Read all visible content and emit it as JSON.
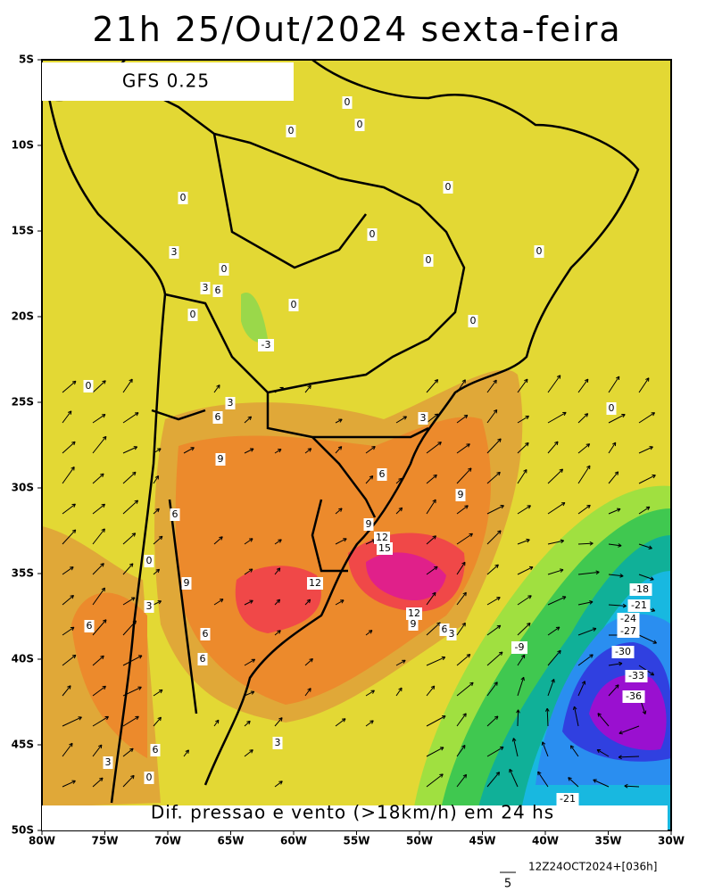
{
  "header": {
    "title": "21h 25/Out/2024 sexta-feira",
    "model": "GFS 0.25"
  },
  "axes": {
    "lat_labels": [
      "5S",
      "10S",
      "15S",
      "20S",
      "25S",
      "30S",
      "35S",
      "40S",
      "45S",
      "50S"
    ],
    "lon_labels": [
      "80W",
      "75W",
      "70W",
      "65W",
      "60W",
      "55W",
      "50W",
      "45W",
      "40W",
      "35W",
      "30W"
    ]
  },
  "contour_labels": [
    "0",
    "0",
    "0",
    "0",
    "0",
    "0",
    "0",
    "0",
    "3",
    "0",
    "3",
    "6",
    "0",
    "0",
    "0",
    "-3",
    "0",
    "3",
    "6",
    "0",
    "3",
    "9",
    "6",
    "9",
    "6",
    "9",
    "12",
    "15",
    "0",
    "9",
    "12",
    "-18",
    "3",
    "-21",
    "12",
    "9",
    "6",
    "6",
    "-24",
    "6",
    "3",
    "-27",
    "-9",
    "6",
    "-30",
    "-33",
    "-36",
    "3",
    "6",
    "3",
    "0",
    "-21"
  ],
  "caption": "Dif. pressao e vento (>18km/h) em 24 hs",
  "footer": {
    "run": "12Z24OCT2024+[036h]",
    "vector_scale": "5"
  }
}
